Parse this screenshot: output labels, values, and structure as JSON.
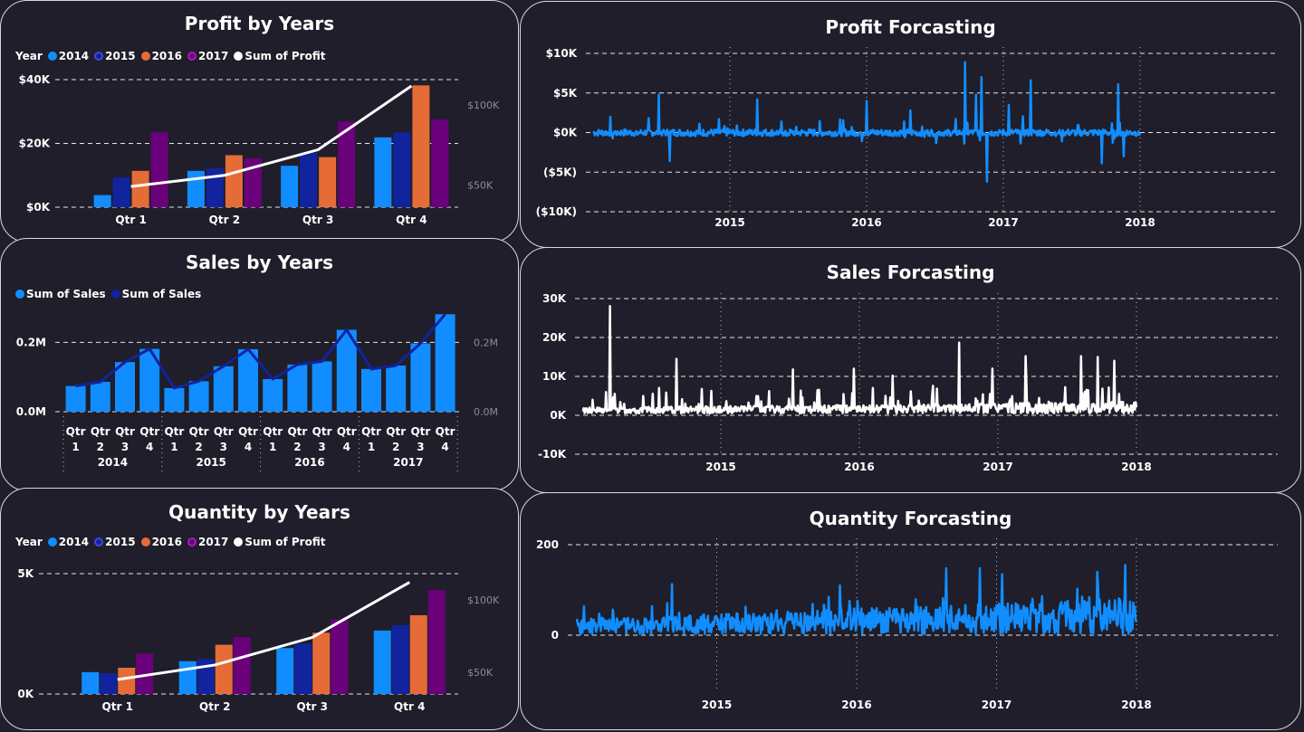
{
  "colors": {
    "y2014": "#118dff",
    "y2015": "#12239e",
    "y2016": "#e66c37",
    "y2017": "#6b007b",
    "line": "#ffffff",
    "sales_bar": "#118dff",
    "sales_line": "#12239e",
    "forecast_blue": "#118dff",
    "forecast_white": "#ffffff"
  },
  "profit_by_years": {
    "title": "Profit by Years",
    "legend_title": "Year",
    "legend": [
      {
        "label": "2014",
        "color_key": "y2014"
      },
      {
        "label": "2015",
        "color_key": "y2015"
      },
      {
        "label": "2016",
        "color_key": "y2016"
      },
      {
        "label": "2017",
        "color_key": "y2017"
      },
      {
        "label": "Sum of Profit",
        "color_key": "line"
      }
    ]
  },
  "sales_by_years": {
    "title": "Sales by Years",
    "legend": [
      {
        "label": "Sum of Sales",
        "color_key": "sales_bar"
      },
      {
        "label": "Sum of Sales",
        "color_key": "sales_line"
      }
    ]
  },
  "quantity_by_years": {
    "title": "Quantity by Years",
    "legend_title": "Year",
    "legend": [
      {
        "label": "2014",
        "color_key": "y2014"
      },
      {
        "label": "2015",
        "color_key": "y2015"
      },
      {
        "label": "2016",
        "color_key": "y2016"
      },
      {
        "label": "2017",
        "color_key": "y2017"
      },
      {
        "label": "Sum of Profit",
        "color_key": "line"
      }
    ]
  },
  "profit_forecasting": {
    "title": "Profit Forcasting"
  },
  "sales_forecasting": {
    "title": "Sales Forcasting"
  },
  "quantity_forecasting": {
    "title": "Quantity Forcasting"
  },
  "chart_data": [
    {
      "id": "profit_by_years",
      "type": "bar",
      "categories": [
        "Qtr 1",
        "Qtr 2",
        "Qtr 3",
        "Qtr 4"
      ],
      "series": [
        {
          "name": "2014",
          "values": [
            3800,
            11400,
            13000,
            21900
          ]
        },
        {
          "name": "2015",
          "values": [
            9300,
            12200,
            17000,
            23400
          ]
        },
        {
          "name": "2016",
          "values": [
            11400,
            16300,
            15700,
            38200
          ]
        },
        {
          "name": "2017",
          "values": [
            23500,
            15300,
            26900,
            27500
          ]
        }
      ],
      "line": {
        "name": "Sum of Profit",
        "values": [
          49000,
          56000,
          72000,
          112000
        ]
      },
      "ylim": [
        0,
        40000
      ],
      "yticks": [
        "$0K",
        "$20K",
        "$40K"
      ],
      "y2lim": [
        36000,
        116000
      ],
      "y2ticks": [
        "$50K",
        "$100K"
      ]
    },
    {
      "id": "sales_by_years",
      "type": "bar",
      "categories": [
        "Qtr 1",
        "Qtr 2",
        "Qtr 3",
        "Qtr 4",
        "Qtr 1",
        "Qtr 2",
        "Qtr 3",
        "Qtr 4",
        "Qtr 1",
        "Qtr 2",
        "Qtr 3",
        "Qtr 4",
        "Qtr 1",
        "Qtr 2",
        "Qtr 3",
        "Qtr 4"
      ],
      "groups": [
        "2014",
        "2015",
        "2016",
        "2017"
      ],
      "series": [
        {
          "name": "Sum of Sales",
          "values": [
            74000,
            86000,
            143000,
            181000,
            68000,
            88000,
            131000,
            180000,
            94000,
            136000,
            145000,
            236000,
            123000,
            133000,
            197000,
            281000
          ]
        }
      ],
      "line": {
        "name": "Sum of Sales",
        "values": [
          74000,
          86000,
          143000,
          181000,
          68000,
          88000,
          131000,
          180000,
          94000,
          136000,
          145000,
          236000,
          123000,
          133000,
          197000,
          281000
        ]
      },
      "ylim": [
        0,
        300000
      ],
      "yticks": [
        "0.0M",
        "0.2M"
      ],
      "y2ticks": [
        "0.0M",
        "0.2M"
      ]
    },
    {
      "id": "quantity_by_years",
      "type": "bar",
      "categories": [
        "Qtr 1",
        "Qtr 2",
        "Qtr 3",
        "Qtr 4"
      ],
      "series": [
        {
          "name": "2014",
          "values": [
            1000,
            1500,
            2100,
            2900
          ]
        },
        {
          "name": "2015",
          "values": [
            950,
            1600,
            2300,
            3150
          ]
        },
        {
          "name": "2016",
          "values": [
            1200,
            2250,
            2800,
            3600
          ]
        },
        {
          "name": "2017",
          "values": [
            1850,
            2600,
            3400,
            4750
          ]
        }
      ],
      "line": {
        "name": "Sum of Profit",
        "values": [
          45000,
          55000,
          74000,
          112000
        ]
      },
      "ylim": [
        0,
        5500
      ],
      "yticks": [
        "0K",
        "5K"
      ],
      "y2lim": [
        35000,
        118000
      ],
      "y2ticks": [
        "$50K",
        "$100K"
      ]
    },
    {
      "id": "profit_forecasting",
      "type": "line",
      "x_start": "2014-01",
      "x_end": "2017-12",
      "xticks": [
        "2015",
        "2016",
        "2017",
        "2018"
      ],
      "ylim": [
        -10000,
        10000
      ],
      "yticks": [
        "($10K)",
        "($5K)",
        "$0K",
        "$5K",
        "$10K"
      ],
      "spikes": [
        [
          0.12,
          4800
        ],
        [
          0.14,
          -3600
        ],
        [
          0.3,
          4200
        ],
        [
          0.5,
          4000
        ],
        [
          0.58,
          2800
        ],
        [
          0.68,
          8900
        ],
        [
          0.7,
          4800
        ],
        [
          0.71,
          7000
        ],
        [
          0.72,
          -6200
        ],
        [
          0.76,
          3500
        ],
        [
          0.8,
          6600
        ],
        [
          0.96,
          6100
        ],
        [
          0.93,
          -3900
        ],
        [
          0.97,
          -3000
        ]
      ]
    },
    {
      "id": "sales_forecasting",
      "type": "line",
      "x_start": "2014-01",
      "x_end": "2017-12",
      "xticks": [
        "2015",
        "2016",
        "2017",
        "2018"
      ],
      "ylim": [
        -10000,
        30000
      ],
      "yticks": [
        "-10K",
        "0K",
        "10K",
        "20K",
        "30K"
      ],
      "spikes": [
        [
          0.05,
          28100
        ],
        [
          0.17,
          14500
        ],
        [
          0.38,
          11800
        ],
        [
          0.49,
          12000
        ],
        [
          0.56,
          10200
        ],
        [
          0.68,
          18700
        ],
        [
          0.74,
          12000
        ],
        [
          0.8,
          15200
        ],
        [
          0.9,
          15200
        ],
        [
          0.93,
          15000
        ],
        [
          0.96,
          14000
        ]
      ]
    },
    {
      "id": "quantity_forecasting",
      "type": "line",
      "x_start": "2014-01",
      "x_end": "2017-12",
      "xticks": [
        "2015",
        "2016",
        "2017",
        "2018"
      ],
      "ylim": [
        -20,
        200
      ],
      "yticks": [
        "0",
        "200"
      ],
      "spikes": [
        [
          0.17,
          113
        ],
        [
          0.47,
          110
        ],
        [
          0.66,
          148
        ],
        [
          0.72,
          148
        ],
        [
          0.76,
          135
        ],
        [
          0.93,
          140
        ],
        [
          0.98,
          155
        ]
      ]
    }
  ]
}
